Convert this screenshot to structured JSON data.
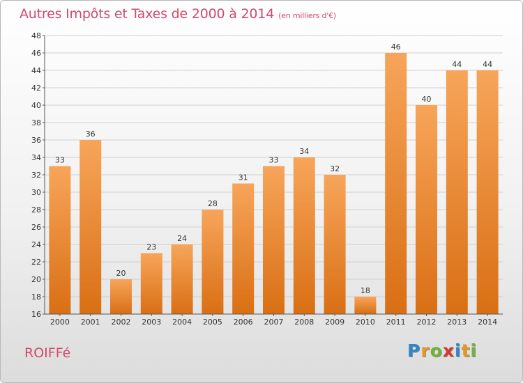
{
  "title": "Autres Impôts et Taxes de 2000 à 2014",
  "subtitle": "(en milliers d'€)",
  "commune": "ROIFFé",
  "logo": {
    "text": "Proxiti"
  },
  "colors": {
    "title": "#d24a6b",
    "bar_light": "#f7a55a",
    "bar_dark": "#d96f14",
    "grid": "#d0d0d0"
  },
  "chart_data": {
    "type": "bar",
    "categories": [
      "2000",
      "2001",
      "2002",
      "2003",
      "2004",
      "2005",
      "2006",
      "2007",
      "2008",
      "2009",
      "2010",
      "2011",
      "2012",
      "2013",
      "2014"
    ],
    "values": [
      33,
      36,
      20,
      23,
      24,
      28,
      31,
      33,
      34,
      32,
      18,
      46,
      40,
      44,
      44
    ],
    "ylim": [
      16,
      48
    ],
    "yticks": [
      16,
      18,
      20,
      22,
      24,
      26,
      28,
      30,
      32,
      34,
      36,
      38,
      40,
      42,
      44,
      46,
      48
    ],
    "grid": true,
    "data_labels": true
  }
}
